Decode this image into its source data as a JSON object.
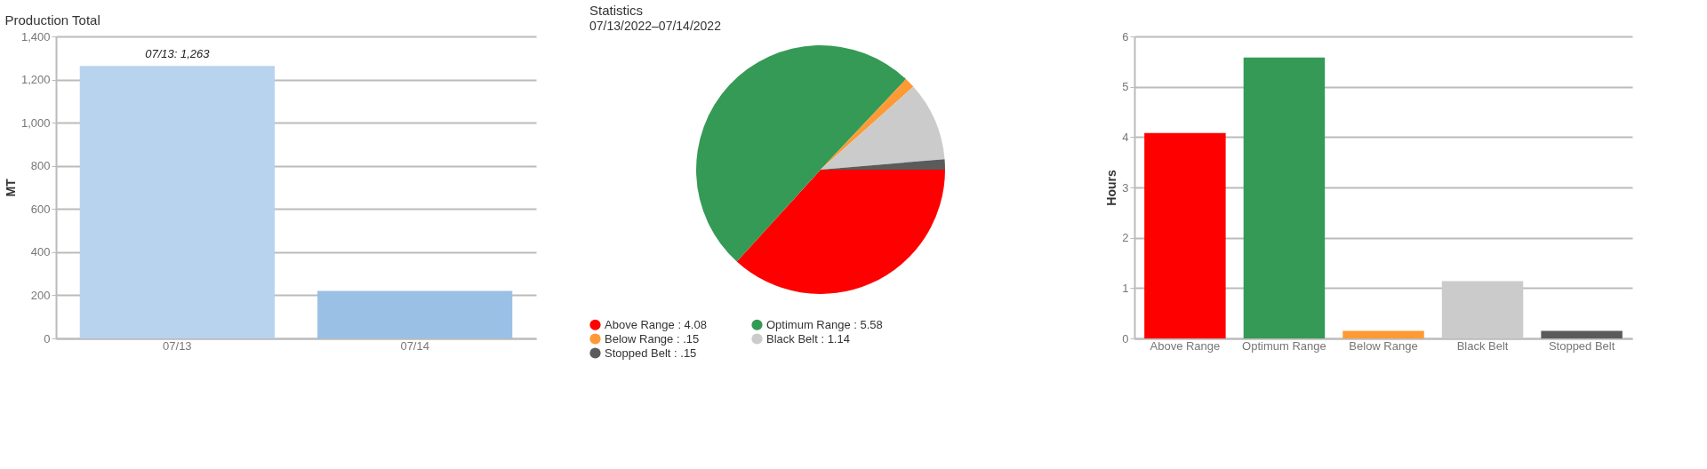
{
  "chart_data": [
    {
      "type": "bar",
      "title": "Production Total",
      "ylabel": "MT",
      "categories": [
        "07/13",
        "07/14"
      ],
      "values": [
        1263,
        220
      ],
      "colors": [
        "#b8d3ee",
        "#9bc0e5"
      ],
      "ylim": [
        0,
        1400
      ],
      "yticks": [
        0,
        200,
        400,
        600,
        800,
        {
          "value": 1000,
          "label": "1,000"
        },
        {
          "value": 1200,
          "label": "1,200"
        },
        {
          "value": 1400,
          "label": "1,400"
        }
      ],
      "grid": "y",
      "legend": false,
      "annotations": [
        {
          "text": "07/13: 1,263",
          "x": "07/13",
          "y": 1263
        }
      ]
    },
    {
      "type": "pie",
      "title": "Statistics",
      "subtitle": "07/13/2022–07/14/2022",
      "categories": [
        "Above Range : 4.08",
        "Optimum Range : 5.58",
        "Below Range : .15",
        "Black Belt : 1.14",
        "Stopped Belt : .15"
      ],
      "values": [
        4.08,
        5.58,
        0.15,
        1.14,
        0.15
      ],
      "colors": [
        "#ff0000",
        "#359a56",
        "#fd9a35",
        "#cbcbcb",
        "#5b5b5b"
      ],
      "legend": "bottom"
    },
    {
      "type": "bar",
      "ylabel": "Hours",
      "categories": [
        "Above Range",
        "Optimum Range",
        "Below Range",
        "Black Belt",
        "Stopped Belt"
      ],
      "values": [
        4.08,
        5.58,
        0.15,
        1.14,
        0.15
      ],
      "colors": [
        "#ff0000",
        "#359a56",
        "#fd9a35",
        "#cbcbcb",
        "#5b5b5b"
      ],
      "ylim": [
        0,
        6
      ],
      "yticks": [
        0,
        1,
        2,
        3,
        4,
        5,
        6
      ],
      "grid": "y",
      "legend": false
    }
  ]
}
